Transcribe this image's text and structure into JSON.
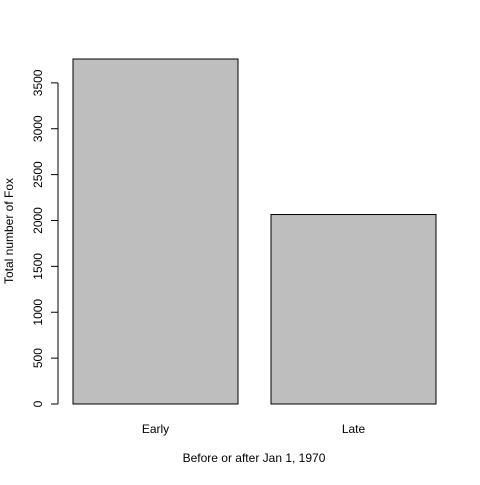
{
  "chart_data": {
    "type": "bar",
    "categories": [
      "Early",
      "Late"
    ],
    "values": [
      3760,
      2065
    ],
    "xlabel": "Before or after Jan 1, 1970",
    "ylabel": "Total number of Fox",
    "ylim": [
      0,
      3760
    ],
    "yticks": [
      0,
      500,
      1000,
      1500,
      2000,
      2500,
      3000,
      3500
    ],
    "grid": false,
    "bar_color": "#bebebe",
    "bar_stroke": "#000000"
  }
}
